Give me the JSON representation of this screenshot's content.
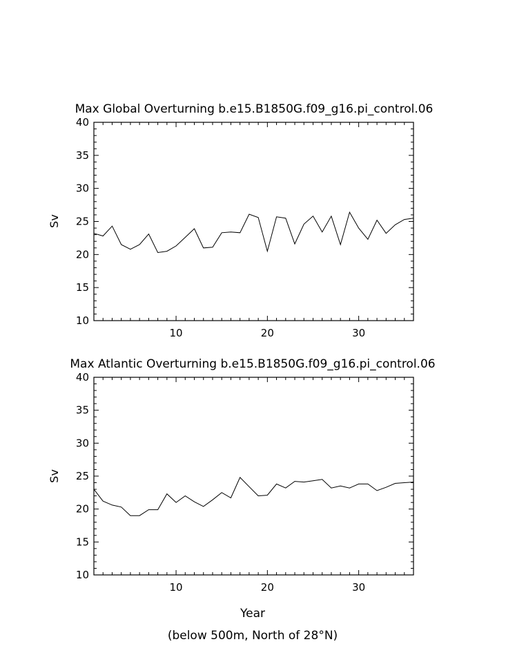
{
  "chart_data": [
    {
      "type": "line",
      "title": "Max Global Overturning b.e15.B1850G.f09_g16.pi_control.06",
      "xlabel": "",
      "ylabel": "Sv",
      "xlim": [
        1,
        36
      ],
      "ylim": [
        10,
        40
      ],
      "yticks": [
        10,
        15,
        20,
        25,
        30,
        35,
        40
      ],
      "xticks": [
        10,
        20,
        30
      ],
      "grid": false,
      "series": [
        {
          "x": [
            1,
            2,
            3,
            4,
            5,
            6,
            7,
            8,
            9,
            10,
            11,
            12,
            13,
            14,
            15,
            16,
            17,
            18,
            19,
            20,
            21,
            22,
            23,
            24,
            25,
            26,
            27,
            28,
            29,
            30,
            31,
            32,
            33,
            34,
            35,
            36
          ],
          "values": [
            23.2,
            22.8,
            24.3,
            21.5,
            20.8,
            21.5,
            23.1,
            20.3,
            20.5,
            21.3,
            22.6,
            23.9,
            21.0,
            21.1,
            23.3,
            23.4,
            23.3,
            26.1,
            25.6,
            20.5,
            25.7,
            25.5,
            21.6,
            24.6,
            25.8,
            23.4,
            25.8,
            21.5,
            26.4,
            24.0,
            22.3,
            25.2,
            23.2,
            24.5,
            25.3,
            25.5
          ]
        }
      ]
    },
    {
      "type": "line",
      "title": "Max Atlantic Overturning b.e15.B1850G.f09_g16.pi_control.06",
      "xlabel": "Year",
      "ylabel": "Sv",
      "xlim": [
        1,
        36
      ],
      "ylim": [
        10,
        40
      ],
      "yticks": [
        10,
        15,
        20,
        25,
        30,
        35,
        40
      ],
      "xticks": [
        10,
        20,
        30
      ],
      "grid": false,
      "series": [
        {
          "x": [
            1,
            2,
            3,
            4,
            5,
            6,
            7,
            8,
            9,
            10,
            11,
            12,
            13,
            14,
            15,
            16,
            17,
            18,
            19,
            20,
            21,
            22,
            23,
            24,
            25,
            26,
            27,
            28,
            29,
            30,
            31,
            32,
            33,
            34,
            35,
            36
          ],
          "values": [
            23.0,
            21.2,
            20.6,
            20.3,
            19.0,
            19.0,
            19.9,
            19.9,
            22.3,
            21.0,
            22.0,
            21.1,
            20.4,
            21.4,
            22.5,
            21.7,
            24.8,
            23.4,
            22.0,
            22.1,
            23.8,
            23.2,
            24.2,
            24.1,
            24.3,
            24.5,
            23.2,
            23.5,
            23.2,
            23.8,
            23.8,
            22.8,
            23.3,
            23.9,
            24.0,
            24.1
          ]
        }
      ]
    }
  ],
  "footnote": "(below 500m, North of 28°N)"
}
